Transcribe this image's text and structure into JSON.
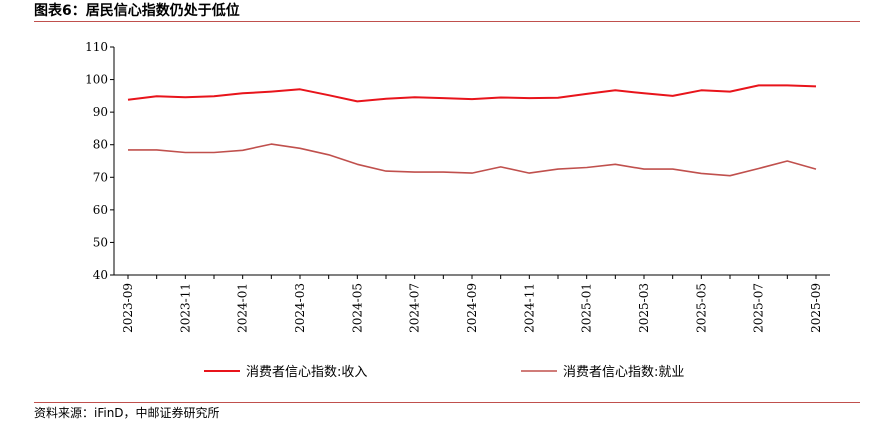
{
  "figure": {
    "title": "图表6：居民信心指数仍处于低位",
    "source": "资料来源：iFinD，中邮证券研究所"
  },
  "colors": {
    "income": "#e8141b",
    "employment": "#c0504d",
    "rule": "#c0504d",
    "axis": "#000000"
  },
  "chart_data": {
    "type": "line",
    "x": [
      "2023-09",
      "2023-10",
      "2023-11",
      "2023-12",
      "2024-01",
      "2024-02",
      "2024-03",
      "2024-04",
      "2024-05",
      "2024-06",
      "2024-07",
      "2024-08",
      "2024-09",
      "2024-10",
      "2024-11",
      "2024-12",
      "2025-01",
      "2025-02",
      "2025-03",
      "2025-04",
      "2025-05",
      "2025-06",
      "2025-07",
      "2025-08",
      "2025-09"
    ],
    "x_tick_labels": [
      "2023-09",
      "2023-11",
      "2024-01",
      "2024-03",
      "2024-05",
      "2024-07",
      "2024-09",
      "2024-11",
      "2025-01",
      "2025-03",
      "2025-05",
      "2025-07",
      "2025-09"
    ],
    "ylim": [
      40,
      110
    ],
    "y_ticks": [
      40,
      50,
      60,
      70,
      80,
      90,
      100,
      110
    ],
    "grid": false,
    "legend_position": "bottom",
    "series": [
      {
        "name": "消费者信心指数:收入",
        "color_key": "income",
        "values": [
          93.8,
          94.9,
          94.6,
          94.9,
          95.8,
          96.3,
          97.0,
          95.2,
          93.3,
          94.1,
          94.6,
          94.3,
          94.0,
          94.5,
          94.3,
          94.4,
          95.6,
          96.7,
          95.8,
          95.0,
          96.7,
          96.3,
          98.2,
          98.2,
          97.9
        ]
      },
      {
        "name": "消费者信心指数:就业",
        "color_key": "employment",
        "values": [
          78.4,
          78.4,
          77.6,
          77.6,
          78.3,
          80.2,
          78.9,
          76.9,
          74.0,
          71.9,
          71.6,
          71.6,
          71.3,
          73.2,
          71.3,
          72.5,
          73.0,
          74.0,
          72.5,
          72.5,
          71.2,
          70.5,
          72.7,
          75.0,
          72.5
        ]
      }
    ]
  }
}
